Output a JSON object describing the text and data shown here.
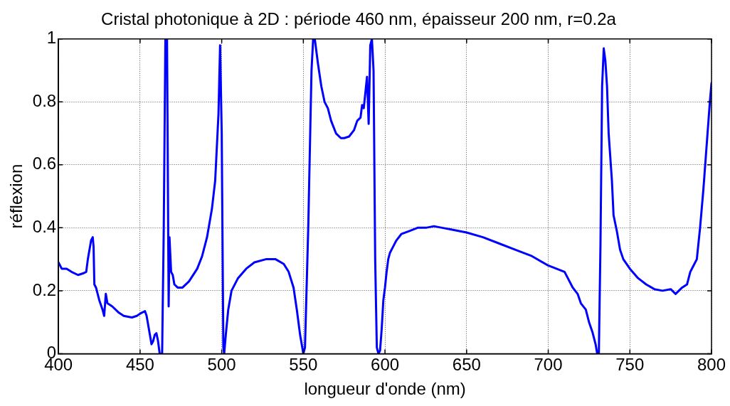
{
  "chart_data": {
    "type": "line",
    "title": "Cristal photonique à 2D : période 460 nm, épaisseur 200 nm, r=0.2a",
    "xlabel": "longueur d'onde (nm)",
    "ylabel": "réflexion",
    "xlim": [
      400,
      800
    ],
    "xticks": [
      400,
      450,
      500,
      550,
      600,
      650,
      700,
      750,
      800
    ],
    "ylim": [
      0,
      1
    ],
    "yticks": [
      0,
      0.2,
      0.4,
      0.6,
      0.8,
      1
    ],
    "grid": true,
    "legend": false,
    "marker": "none",
    "line_style": "solid",
    "series": [
      {
        "color": "#0000ff",
        "x": [
          400,
          402,
          405,
          408,
          412,
          415,
          417,
          418,
          419,
          420,
          421,
          421.5,
          422,
          423,
          425,
          427,
          428,
          429,
          430,
          433,
          437,
          440,
          445,
          448,
          451,
          453,
          454,
          456,
          457,
          458,
          459,
          460,
          461,
          462,
          463.5,
          464.5,
          465.5,
          466.5,
          467.5,
          468,
          469,
          470,
          471,
          473,
          476,
          480,
          485,
          488,
          491,
          494,
          496,
          498,
          499,
          500,
          501,
          501.5,
          502.5,
          504,
          506,
          510,
          515,
          520,
          527,
          533,
          538,
          541,
          544,
          546,
          548,
          550,
          551,
          553,
          555,
          556,
          557,
          559,
          561,
          563,
          565,
          567,
          570,
          573,
          575,
          578,
          581,
          583,
          585,
          586,
          587,
          588,
          589,
          590,
          591,
          592,
          593,
          594,
          595,
          596,
          597,
          598,
          599,
          600,
          601,
          602,
          603,
          605,
          607,
          610,
          615,
          620,
          625,
          630,
          635,
          640,
          645,
          650,
          660,
          670,
          680,
          690,
          700,
          705,
          710,
          712,
          715,
          718,
          720,
          723,
          725,
          727,
          729,
          730,
          731,
          732,
          733,
          734,
          735,
          736,
          737,
          739,
          740,
          742,
          744,
          746,
          750,
          755,
          760,
          765,
          770,
          775,
          778,
          780,
          782,
          785,
          787,
          789,
          791,
          793,
          795,
          797,
          799,
          800
        ],
        "values": [
          0.29,
          0.27,
          0.27,
          0.26,
          0.25,
          0.255,
          0.26,
          0.3,
          0.33,
          0.36,
          0.37,
          0.34,
          0.22,
          0.21,
          0.17,
          0.14,
          0.12,
          0.19,
          0.16,
          0.15,
          0.13,
          0.12,
          0.115,
          0.12,
          0.13,
          0.135,
          0.12,
          0.06,
          0.03,
          0.04,
          0.06,
          0.065,
          0.04,
          0,
          0,
          0.4,
          1,
          1,
          0.15,
          0.37,
          0.26,
          0.25,
          0.22,
          0.21,
          0.21,
          0.23,
          0.27,
          0.31,
          0.37,
          0.46,
          0.55,
          0.76,
          0.98,
          0.7,
          0.02,
          0,
          0.06,
          0.14,
          0.2,
          0.24,
          0.27,
          0.29,
          0.3,
          0.3,
          0.285,
          0.26,
          0.21,
          0.14,
          0.06,
          0,
          0.02,
          0.4,
          0.9,
          1,
          1,
          0.92,
          0.85,
          0.8,
          0.78,
          0.74,
          0.7,
          0.685,
          0.685,
          0.69,
          0.71,
          0.74,
          0.75,
          0.79,
          0.78,
          0.83,
          0.88,
          0.73,
          0.98,
          1,
          0.9,
          0.3,
          0.02,
          0,
          0.01,
          0.08,
          0.17,
          0.21,
          0.26,
          0.3,
          0.32,
          0.34,
          0.36,
          0.38,
          0.39,
          0.4,
          0.4,
          0.405,
          0.4,
          0.395,
          0.39,
          0.385,
          0.37,
          0.35,
          0.33,
          0.31,
          0.28,
          0.27,
          0.26,
          0.24,
          0.21,
          0.19,
          0.16,
          0.14,
          0.1,
          0.07,
          0.03,
          0,
          0,
          0.35,
          0.85,
          0.97,
          0.93,
          0.85,
          0.7,
          0.55,
          0.44,
          0.39,
          0.33,
          0.3,
          0.27,
          0.24,
          0.22,
          0.205,
          0.2,
          0.205,
          0.19,
          0.2,
          0.21,
          0.22,
          0.26,
          0.28,
          0.3,
          0.4,
          0.52,
          0.66,
          0.8,
          0.86
        ]
      }
    ]
  }
}
